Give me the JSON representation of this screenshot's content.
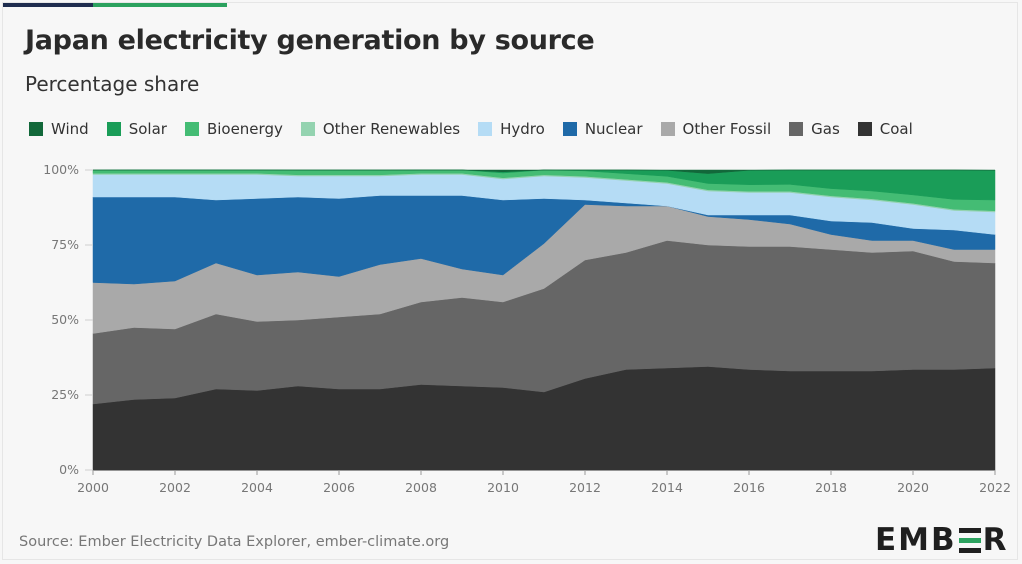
{
  "brand": {
    "accent_color": "#2ca25f",
    "accent_dark": "#1f2d4f"
  },
  "header": {
    "title": "Japan electricity generation by source",
    "subtitle": "Percentage share"
  },
  "legend": [
    {
      "label": "Wind",
      "color": "#12683a"
    },
    {
      "label": "Solar",
      "color": "#1a9d58"
    },
    {
      "label": "Bioenergy",
      "color": "#44bc74"
    },
    {
      "label": "Other Renewables",
      "color": "#94d3b0"
    },
    {
      "label": "Hydro",
      "color": "#b5dcf5"
    },
    {
      "label": "Nuclear",
      "color": "#1f6aa8"
    },
    {
      "label": "Other Fossil",
      "color": "#a9a9a9"
    },
    {
      "label": "Gas",
      "color": "#666666"
    },
    {
      "label": "Coal",
      "color": "#333333"
    }
  ],
  "chart_data": {
    "type": "area",
    "stacked": true,
    "title": "Japan electricity generation by source",
    "subtitle": "Percentage share",
    "xlabel": "",
    "ylabel": "",
    "x": [
      2000,
      2001,
      2002,
      2003,
      2004,
      2005,
      2006,
      2007,
      2008,
      2009,
      2010,
      2011,
      2012,
      2013,
      2014,
      2015,
      2016,
      2017,
      2018,
      2019,
      2020,
      2021,
      2022
    ],
    "ylim": [
      0,
      100
    ],
    "y_ticks": [
      "0%",
      "25%",
      "50%",
      "75%",
      "100%"
    ],
    "y_tick_values": [
      0,
      25,
      50,
      75,
      100
    ],
    "x_ticks": [
      "2000",
      "2002",
      "2004",
      "2006",
      "2008",
      "2010",
      "2012",
      "2014",
      "2016",
      "2018",
      "2020",
      "2022"
    ],
    "series": [
      {
        "name": "Coal",
        "color": "#333333",
        "values": [
          22,
          23.5,
          24,
          27,
          26.5,
          28,
          27,
          27,
          28.5,
          28,
          27.5,
          26,
          30.5,
          33.5,
          34,
          34.5,
          33.5,
          33,
          33,
          33,
          33.5,
          33.5,
          34
        ]
      },
      {
        "name": "Gas",
        "color": "#666666",
        "values": [
          23.5,
          24,
          23,
          25,
          23,
          22,
          24,
          25,
          27.5,
          29.5,
          28.5,
          34.5,
          39.5,
          39,
          42.5,
          40.5,
          41,
          41.5,
          40.5,
          39.5,
          39.5,
          36,
          35
        ]
      },
      {
        "name": "Other Fossil",
        "color": "#a9a9a9",
        "values": [
          17,
          14.5,
          16,
          17,
          15.5,
          16,
          13.5,
          16.5,
          14.5,
          9.5,
          9,
          15,
          18.5,
          15.5,
          11.5,
          9.5,
          9,
          7.5,
          5,
          4,
          3.5,
          4,
          4.5
        ]
      },
      {
        "name": "Nuclear",
        "color": "#1f6aa8",
        "values": [
          28.5,
          29,
          28,
          21,
          25.5,
          25,
          26,
          23,
          21,
          24.5,
          25,
          15,
          1.5,
          1,
          0,
          0.5,
          1.5,
          3,
          4.5,
          6,
          4,
          6.5,
          5
        ]
      },
      {
        "name": "Hydro",
        "color": "#b5dcf5",
        "values": [
          7.5,
          7.5,
          7.5,
          8.5,
          8,
          7,
          7.5,
          6.5,
          7,
          7,
          7,
          7.5,
          7.5,
          7.5,
          7.5,
          8,
          7.5,
          7.5,
          8,
          7.5,
          8,
          6.5,
          7.5
        ]
      },
      {
        "name": "Other Renewables",
        "color": "#94d3b0",
        "values": [
          0.4,
          0.4,
          0.4,
          0.4,
          0.4,
          0.4,
          0.4,
          0.4,
          0.4,
          0.4,
          0.4,
          0.4,
          0.4,
          0.4,
          0.4,
          0.4,
          0.4,
          0.4,
          0.4,
          0.4,
          0.4,
          0.4,
          0.4
        ]
      },
      {
        "name": "Bioenergy",
        "color": "#44bc74",
        "values": [
          1,
          1.1,
          1.2,
          1.3,
          1.4,
          1.5,
          1.5,
          1.5,
          1.5,
          1.5,
          1.6,
          1.7,
          1.8,
          1.9,
          2,
          2.1,
          2.2,
          2.3,
          2.4,
          2.6,
          2.8,
          3.3,
          3.6
        ]
      },
      {
        "name": "Solar",
        "color": "#1a9d58",
        "values": [
          0.1,
          0.1,
          0.1,
          0.1,
          0.1,
          0.1,
          0.1,
          0.1,
          0.1,
          0.3,
          0.4,
          0.5,
          0.6,
          1.2,
          2,
          3.3,
          4.8,
          5.8,
          6.8,
          7.8,
          9,
          9.8,
          9.9
        ]
      },
      {
        "name": "Wind",
        "color": "#12683a",
        "values": [
          0.1,
          0.1,
          0.2,
          0.2,
          0.2,
          0.2,
          0.3,
          0.3,
          0.3,
          0.3,
          0.4,
          0.4,
          0.5,
          0.5,
          0.5,
          0.5,
          0.5,
          0.6,
          0.7,
          0.7,
          0.8,
          0.8,
          0.9
        ]
      }
    ]
  },
  "footer": {
    "source": "Source: Ember Electricity Data Explorer, ember-climate.org",
    "logo_text_left": "EMB",
    "logo_text_right": "R",
    "logo_alt": "EMBER"
  }
}
